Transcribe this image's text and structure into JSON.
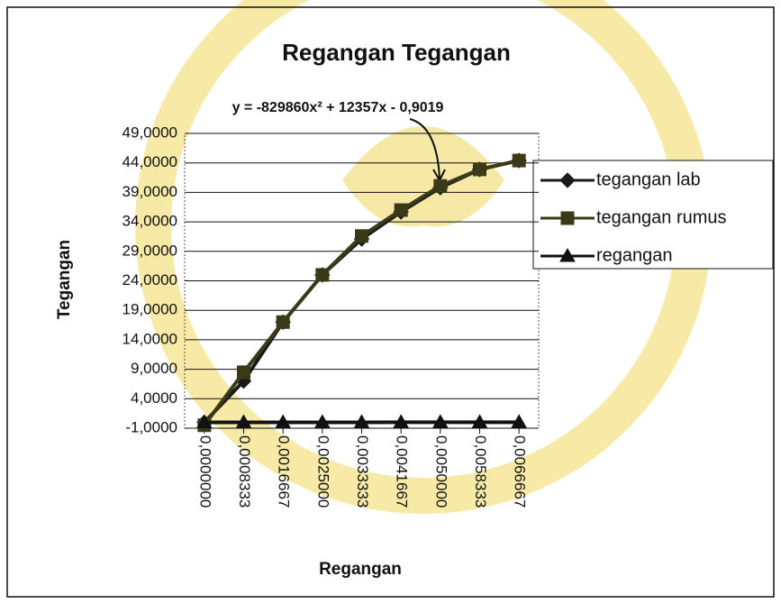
{
  "chart_data": {
    "type": "line",
    "title": "Regangan Tegangan",
    "annotation": "y = -829860x² + 12357x - 0,9019",
    "x_label": "Regangan",
    "y_label": "Tegangan",
    "categories": [
      "0,0000000",
      "0,0008333",
      "0,0016667",
      "0,0025000",
      "0,0033333",
      "0,0041667",
      "0,0050000",
      "0,0058333",
      "0,0066667"
    ],
    "series": [
      {
        "name": "tegangan lab",
        "color": "#1a1a1a",
        "marker": "diamond",
        "values": [
          0,
          7.0,
          17.0,
          25.0,
          31.1,
          35.7,
          39.8,
          42.9,
          44.4
        ]
      },
      {
        "name": "tegangan rumus",
        "color": "#3b3a18",
        "marker": "square",
        "values": [
          -0.5,
          8.5,
          17.0,
          25.0,
          31.6,
          36.0,
          40.1,
          42.9,
          44.4
        ]
      },
      {
        "name": "regangan",
        "color": "#111111",
        "marker": "triangle",
        "values": [
          0,
          0.0008333,
          0.0016667,
          0.0025,
          0.0033333,
          0.0041667,
          0.005,
          0.0058333,
          0.0066667
        ]
      }
    ],
    "ylim": [
      -1,
      49
    ],
    "yticks": [
      {
        "value": -1,
        "label": "-1,0000"
      },
      {
        "value": 4,
        "label": "4,0000"
      },
      {
        "value": 9,
        "label": "9,0000"
      },
      {
        "value": 14,
        "label": "14,0000"
      },
      {
        "value": 19,
        "label": "19,0000"
      },
      {
        "value": 24,
        "label": "24,0000"
      },
      {
        "value": 29,
        "label": "29,0000"
      },
      {
        "value": 34,
        "label": "34,0000"
      },
      {
        "value": 39,
        "label": "39,0000"
      },
      {
        "value": 44,
        "label": "44,0000"
      },
      {
        "value": 49,
        "label": "49,0000"
      }
    ],
    "grid": true,
    "legend": "right"
  }
}
